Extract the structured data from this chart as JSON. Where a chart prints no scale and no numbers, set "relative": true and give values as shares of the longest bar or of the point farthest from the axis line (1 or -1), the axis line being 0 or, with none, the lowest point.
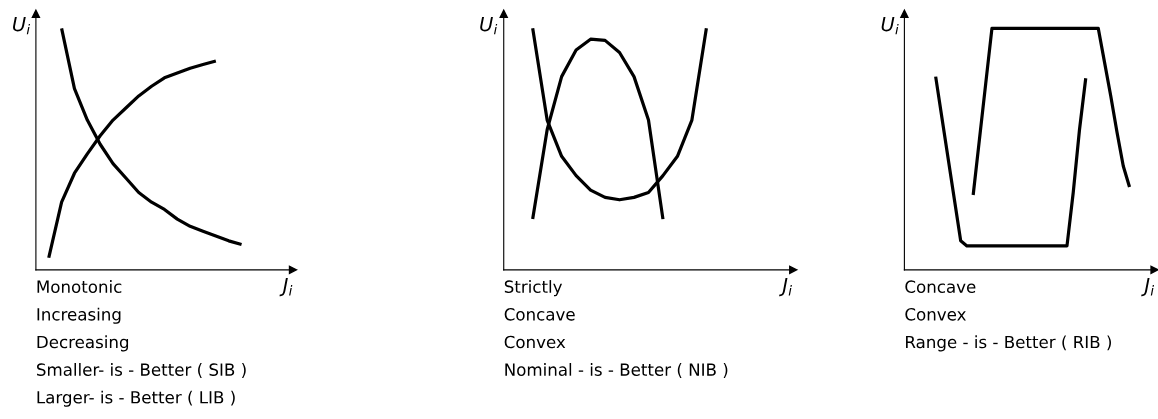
{
  "chart_data": [
    {
      "type": "line",
      "relative": true,
      "xlabel": "J$_{i}$",
      "ylabel": "U$_{i}$",
      "line_style": "solid",
      "categories": [
        null,
        null,
        null,
        null,
        null,
        null,
        null,
        null,
        null,
        null,
        null,
        null,
        null,
        null,
        null,
        null,
        null,
        null,
        null,
        null,
        null
      ],
      "series": [
        {
          "color": "#000000",
          "values": [
            null,
            0.05,
            0.28,
            0.4,
            0.48,
            0.555,
            0.62,
            0.67,
            0.72,
            0.76,
            0.795,
            0.815,
            0.835,
            0.85,
            0.865,
            null,
            null,
            null,
            null,
            null,
            null
          ]
        },
        {
          "color": "#000000",
          "values": [
            null,
            null,
            1.0,
            0.75,
            0.62,
            0.52,
            0.44,
            0.38,
            0.32,
            0.28,
            0.25,
            0.21,
            0.18,
            0.16,
            0.14,
            0.12,
            0.105,
            null,
            null,
            null,
            null
          ]
        }
      ],
      "annotations": [
        "Monotonic",
        "Increasing",
        "Decreasing",
        "Smaller- is - Better ( SIB )",
        "Larger- is - Better ( LIB )"
      ]
    },
    {
      "type": "line",
      "relative": true,
      "xlabel": "J$_{i}$",
      "ylabel": "U$_{i}$",
      "line_style": "solid",
      "categories": [
        null,
        null,
        null,
        null,
        null,
        null,
        null,
        null,
        null,
        null,
        null,
        null,
        null,
        null,
        null,
        null,
        null,
        null,
        null,
        null,
        null
      ],
      "series": [
        {
          "color": "#000000",
          "values": [
            null,
            null,
            0.21,
            0.58,
            0.8,
            0.91,
            0.955,
            0.95,
            0.9,
            0.8,
            0.62,
            0.21,
            null,
            null,
            null,
            null,
            null,
            null,
            null,
            null,
            null
          ]
        },
        {
          "color": "#000000",
          "values": [
            null,
            null,
            1.0,
            0.62,
            0.47,
            0.39,
            0.33,
            0.3,
            0.29,
            0.3,
            0.32,
            0.39,
            0.47,
            0.62,
            1.0,
            null,
            null,
            null,
            null,
            null,
            null
          ]
        }
      ],
      "annotations": [
        "Strictly",
        "Concave",
        "Convex",
        "Nominal - is - Better ( NIB )"
      ]
    },
    {
      "type": "line",
      "relative": true,
      "xlabel": "J$_{i}$",
      "ylabel": "U$_{i}$",
      "line_style": "solid",
      "categories": [
        null,
        null,
        null,
        null,
        null,
        null,
        null,
        null,
        null,
        null,
        null,
        null,
        null,
        null,
        null,
        null,
        null,
        null,
        null,
        null,
        null,
        null,
        null,
        null,
        null,
        null,
        null,
        null,
        null,
        null,
        null,
        null,
        null,
        null,
        null,
        null,
        null,
        null,
        null,
        null,
        null
      ],
      "series": [
        {
          "color": "#000000",
          "values": [
            null,
            null,
            null,
            null,
            null,
            0.8,
            0.63,
            0.46,
            0.29,
            0.12,
            0.099,
            0.099,
            0.099,
            0.099,
            0.099,
            0.099,
            0.099,
            0.099,
            0.099,
            0.099,
            0.099,
            0.099,
            0.099,
            0.099,
            0.099,
            0.099,
            0.099,
            0.32,
            0.58,
            0.793,
            null,
            null,
            null,
            null,
            null,
            null,
            null,
            null,
            null,
            null,
            null
          ]
        },
        {
          "color": "#000000",
          "values": [
            null,
            null,
            null,
            null,
            null,
            null,
            null,
            null,
            null,
            null,
            null,
            0.31,
            0.54,
            0.77,
            1.0,
            1.0,
            1.0,
            1.0,
            1.0,
            1.0,
            1.0,
            1.0,
            1.0,
            1.0,
            1.0,
            1.0,
            1.0,
            1.0,
            1.0,
            1.0,
            1.0,
            1.0,
            0.86,
            0.72,
            0.57,
            0.43,
            0.343,
            null,
            null,
            null,
            null
          ]
        }
      ],
      "annotations": [
        "Concave",
        "Convex",
        "Range - is - Better ( RIB )"
      ]
    }
  ]
}
